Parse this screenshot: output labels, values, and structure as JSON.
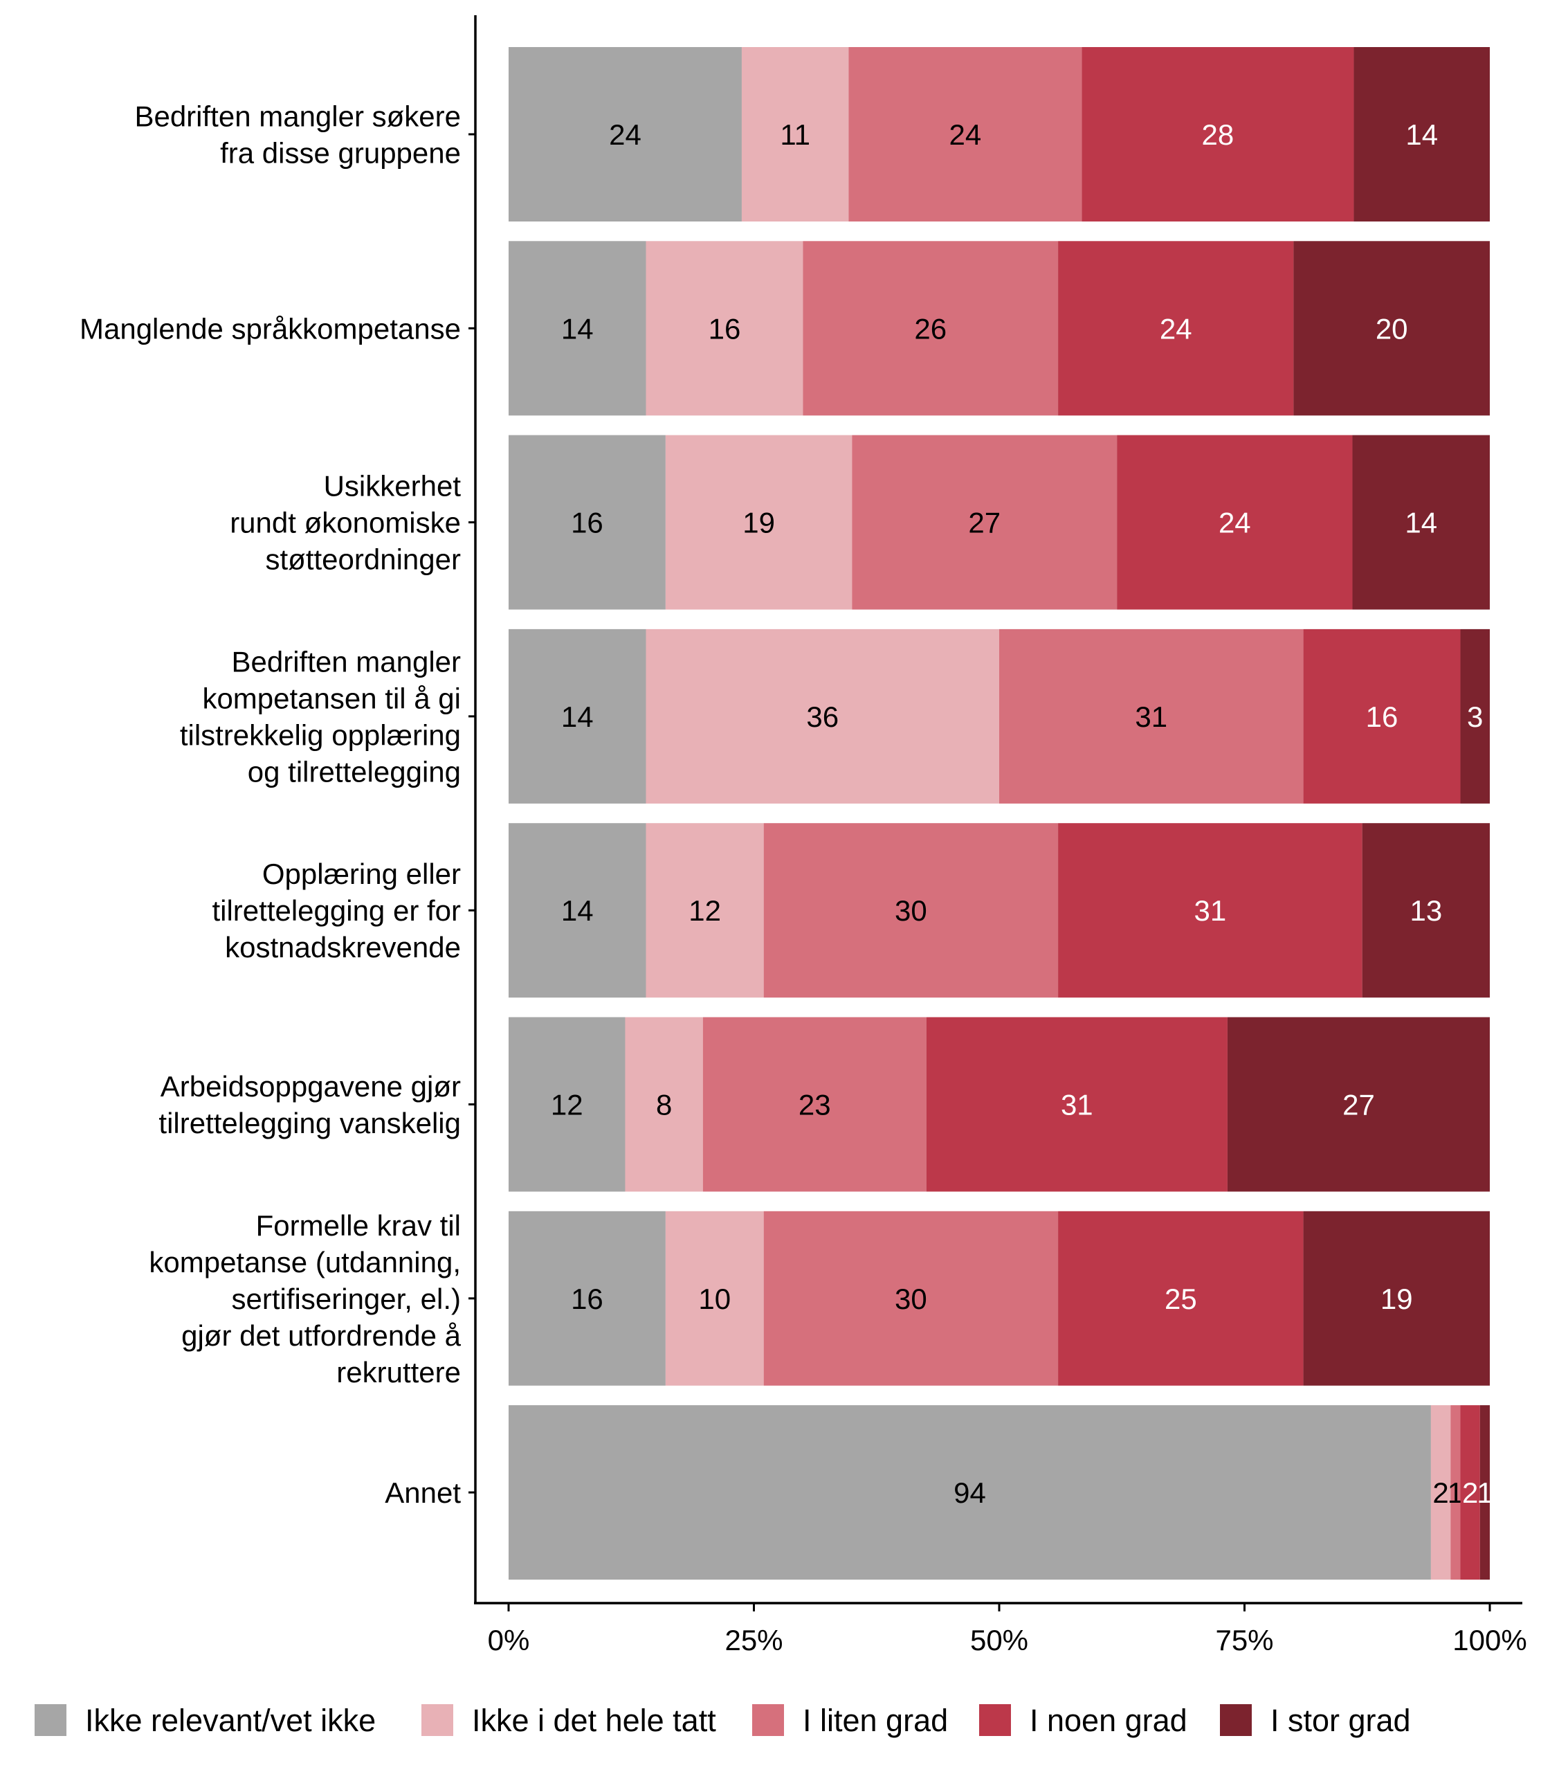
{
  "chart_data": {
    "type": "bar",
    "orientation": "horizontal",
    "stacked": true,
    "normalized": true,
    "categories": [
      "Bedriften mangler søkere\nfra disse gruppene",
      "Manglende språkkompetanse",
      "Usikkerhet\nrundt økonomiske\nstøtteordninger",
      "Bedriften mangler\nkompetansen til å gi\ntilstrekkelig opplæring\nog tilrettelegging",
      "Opplæring eller\ntilrettelegging er for\nkostnadskrevende",
      "Arbeidsoppgavene gjør\ntilrettelegging vanskelig",
      "Formelle krav til\nkompetanse (utdanning,\nsertifiseringer, el.)\ngjør det utfordrende å\nrekruttere",
      "Annet"
    ],
    "series": [
      {
        "name": "Ikke relevant/vet ikke",
        "color": "#a6a6a6",
        "label_color": "#000000",
        "values": [
          24,
          14,
          16,
          14,
          14,
          12,
          16,
          94
        ]
      },
      {
        "name": "Ikke i det hele tatt",
        "color": "#e8b1b6",
        "label_color": "#000000",
        "values": [
          11,
          16,
          19,
          36,
          12,
          8,
          10,
          2
        ]
      },
      {
        "name": "I liten grad",
        "color": "#d6707c",
        "label_color": "#000000",
        "values": [
          24,
          26,
          27,
          31,
          30,
          23,
          30,
          1
        ]
      },
      {
        "name": "I noen grad",
        "color": "#bc384a",
        "label_color": "#ffffff",
        "values": [
          28,
          24,
          24,
          16,
          31,
          31,
          25,
          2
        ]
      },
      {
        "name": "I stor grad",
        "color": "#7c232e",
        "label_color": "#ffffff",
        "values": [
          14,
          20,
          14,
          3,
          13,
          27,
          19,
          1
        ]
      }
    ],
    "xaxis": {
      "ticks": [
        "0%",
        "25%",
        "50%",
        "75%",
        "100%"
      ],
      "range": [
        0,
        100
      ]
    },
    "legend": {
      "position": "bottom"
    },
    "grid": false
  }
}
